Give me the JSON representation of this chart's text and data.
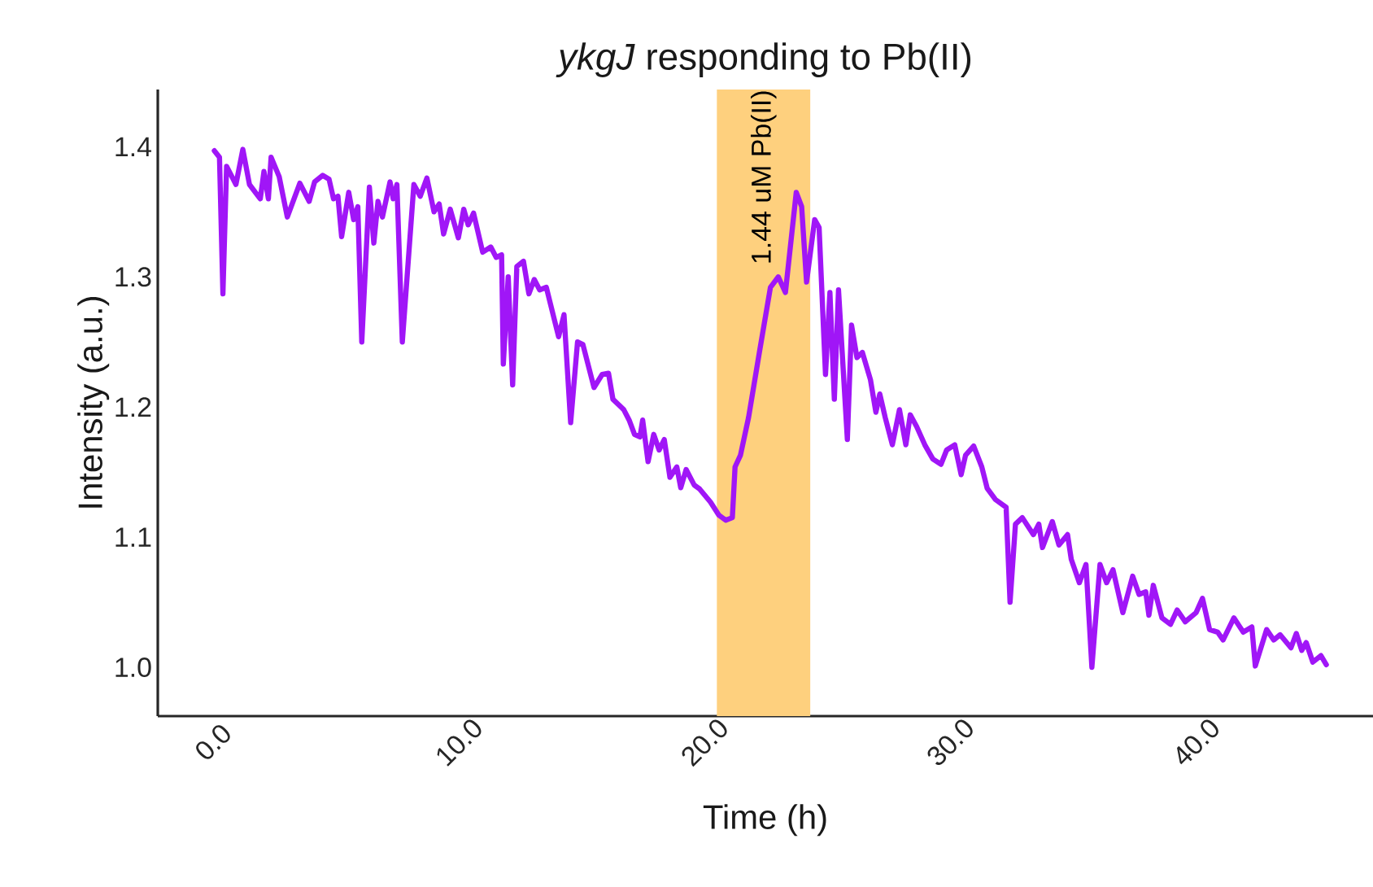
{
  "chart_data": {
    "type": "line",
    "title": "*ykgJ* responding to Pb(II)",
    "xlabel": "Time (h)",
    "ylabel": "Intensity (a.u.)",
    "xlim": [
      -2.25,
      47.2
    ],
    "ylim": [
      0.9625,
      1.444
    ],
    "xticks": [
      {
        "value": 0,
        "label": "0.0"
      },
      {
        "value": 10,
        "label": "10.0"
      },
      {
        "value": 20,
        "label": "20.0"
      },
      {
        "value": 30,
        "label": "30.0"
      },
      {
        "value": 40,
        "label": "40.0"
      }
    ],
    "yticks": [
      {
        "value": 1.0,
        "label": "1.0"
      },
      {
        "value": 1.1,
        "label": "1.1"
      },
      {
        "value": 1.2,
        "label": "1.2"
      },
      {
        "value": 1.3,
        "label": "1.3"
      },
      {
        "value": 1.4,
        "label": "1.4"
      }
    ],
    "grid": false,
    "marker": "none",
    "line_style": "solid",
    "bands": [
      {
        "axis": "x",
        "from": 20.5,
        "to": 24.3,
        "label": "1.44 uM Pb(II)",
        "color": "#fed07e"
      }
    ],
    "series": [
      {
        "color": "#a016f7",
        "x": [
          0.05,
          0.26,
          0.4,
          0.55,
          0.93,
          1.21,
          1.48,
          1.92,
          2.07,
          2.25,
          2.36,
          2.69,
          3.02,
          3.53,
          3.91,
          4.13,
          4.46,
          4.72,
          4.9,
          5.08,
          5.23,
          5.52,
          5.72,
          5.89,
          6.05,
          6.36,
          6.54,
          6.71,
          6.89,
          7.2,
          7.33,
          7.48,
          7.7,
          8.17,
          8.43,
          8.7,
          8.99,
          9.2,
          9.38,
          9.65,
          9.98,
          10.2,
          10.38,
          10.6,
          10.97,
          11.3,
          11.52,
          11.74,
          11.81,
          12.01,
          12.19,
          12.36,
          12.63,
          12.85,
          13.07,
          13.29,
          13.56,
          13.73,
          14.06,
          14.28,
          14.55,
          14.83,
          15.05,
          15.5,
          15.83,
          16.09,
          16.27,
          16.71,
          16.93,
          17.15,
          17.37,
          17.48,
          17.7,
          17.93,
          18.15,
          18.36,
          18.59,
          18.87,
          19.03,
          19.25,
          19.58,
          19.8,
          20.24,
          20.58,
          20.86,
          21.13,
          21.24,
          21.46,
          21.79,
          22.23,
          22.68,
          23.0,
          23.29,
          23.73,
          23.95,
          24.15,
          24.48,
          24.66,
          24.92,
          25.1,
          25.28,
          25.45,
          25.81,
          25.98,
          26.2,
          26.42,
          26.75,
          26.97,
          27.13,
          27.35,
          27.64,
          27.93,
          28.19,
          28.37,
          28.63,
          28.96,
          29.29,
          29.62,
          29.85,
          30.18,
          30.44,
          30.62,
          30.95,
          31.28,
          31.5,
          31.83,
          32.27,
          32.43,
          32.65,
          32.93,
          33.38,
          33.6,
          33.75,
          34.15,
          34.42,
          34.77,
          34.92,
          35.25,
          35.52,
          35.76,
          36.09,
          36.36,
          36.62,
          37.02,
          37.42,
          37.68,
          37.95,
          38.08,
          38.26,
          38.61,
          38.96,
          39.23,
          39.56,
          40.0,
          40.26,
          40.55,
          40.88,
          41.1,
          41.54,
          41.92,
          42.27,
          42.41,
          42.87,
          43.16,
          43.42,
          43.86,
          44.08,
          44.3,
          44.48,
          44.75,
          45.08,
          45.3
        ],
        "values": [
          1.397,
          1.392,
          1.287,
          1.385,
          1.371,
          1.398,
          1.371,
          1.36,
          1.381,
          1.36,
          1.392,
          1.377,
          1.346,
          1.372,
          1.358,
          1.373,
          1.378,
          1.375,
          1.36,
          1.362,
          1.331,
          1.365,
          1.344,
          1.354,
          1.25,
          1.369,
          1.326,
          1.358,
          1.346,
          1.373,
          1.36,
          1.371,
          1.25,
          1.371,
          1.362,
          1.376,
          1.35,
          1.356,
          1.333,
          1.352,
          1.33,
          1.352,
          1.34,
          1.349,
          1.319,
          1.323,
          1.315,
          1.317,
          1.233,
          1.3,
          1.217,
          1.308,
          1.312,
          1.287,
          1.298,
          1.29,
          1.292,
          1.279,
          1.254,
          1.271,
          1.188,
          1.25,
          1.248,
          1.215,
          1.225,
          1.226,
          1.206,
          1.198,
          1.19,
          1.179,
          1.177,
          1.19,
          1.158,
          1.179,
          1.167,
          1.175,
          1.146,
          1.154,
          1.138,
          1.152,
          1.14,
          1.137,
          1.127,
          1.117,
          1.113,
          1.115,
          1.154,
          1.163,
          1.192,
          1.242,
          1.292,
          1.3,
          1.288,
          1.365,
          1.354,
          1.296,
          1.344,
          1.338,
          1.225,
          1.288,
          1.206,
          1.29,
          1.175,
          1.263,
          1.238,
          1.242,
          1.221,
          1.196,
          1.21,
          1.192,
          1.171,
          1.198,
          1.171,
          1.194,
          1.185,
          1.171,
          1.16,
          1.156,
          1.167,
          1.171,
          1.148,
          1.163,
          1.17,
          1.154,
          1.1375,
          1.129,
          1.123,
          1.05,
          1.11,
          1.115,
          1.102,
          1.11,
          1.092,
          1.112,
          1.094,
          1.102,
          1.083,
          1.065,
          1.079,
          1.0,
          1.079,
          1.065,
          1.075,
          1.042,
          1.07,
          1.056,
          1.058,
          1.04,
          1.063,
          1.038,
          1.033,
          1.044,
          1.035,
          1.042,
          1.053,
          1.029,
          1.027,
          1.021,
          1.038,
          1.027,
          1.031,
          1.001,
          1.029,
          1.021,
          1.025,
          1.015,
          1.026,
          1.013,
          1.019,
          1.004,
          1.009,
          1.002
        ]
      }
    ]
  }
}
